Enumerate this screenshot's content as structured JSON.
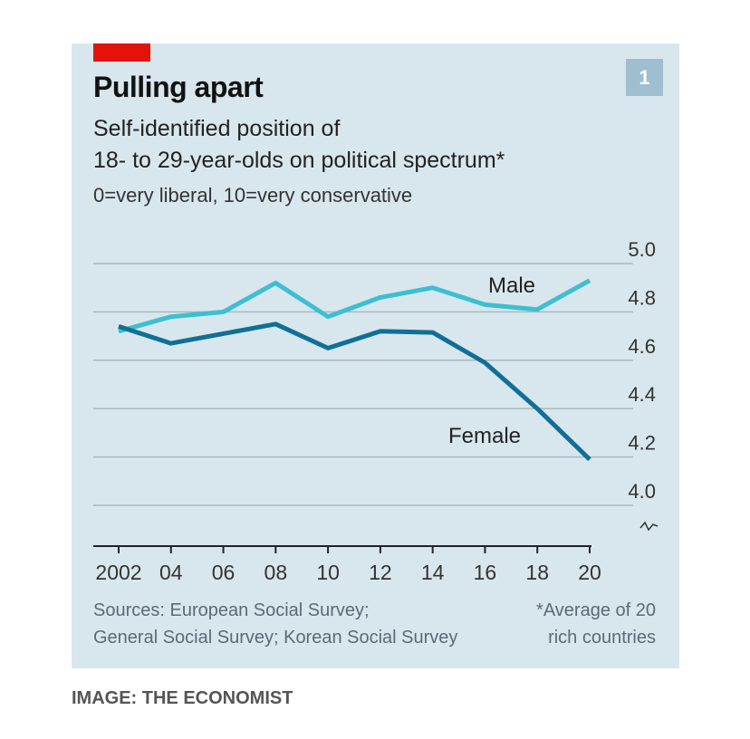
{
  "credit": "IMAGE: THE ECONOMIST",
  "badge": "1",
  "chart_data": {
    "type": "line",
    "title": "Pulling apart",
    "subtitle_lines": [
      "Self-identified position of",
      "18- to 29-year-olds on political spectrum*"
    ],
    "scale_note": "0=very liberal, 10=very conservative",
    "x": [
      2002,
      2004,
      2006,
      2008,
      2010,
      2012,
      2014,
      2016,
      2018,
      2020
    ],
    "x_tick_labels": [
      "2002",
      "04",
      "06",
      "08",
      "10",
      "12",
      "14",
      "16",
      "18",
      "20"
    ],
    "y_tick_labels": [
      "5.0",
      "4.8",
      "4.6",
      "4.4",
      "4.2",
      "4.0"
    ],
    "y_ticks": [
      5.0,
      4.8,
      4.6,
      4.4,
      4.2,
      4.0
    ],
    "ylim": [
      4.0,
      5.0
    ],
    "y_axis_side": "right",
    "grid": true,
    "series": [
      {
        "name": "Male",
        "color": "#3dbfd1",
        "values": [
          4.72,
          4.78,
          4.8,
          4.92,
          4.78,
          4.86,
          4.9,
          4.83,
          4.81,
          4.93
        ]
      },
      {
        "name": "Female",
        "color": "#106f96",
        "values": [
          4.74,
          4.67,
          4.71,
          4.75,
          4.65,
          4.72,
          4.715,
          4.59,
          4.4,
          4.19
        ]
      }
    ],
    "sources": [
      "Sources: European Social Survey;",
      "General Social Survey; Korean Social Survey"
    ],
    "footnote": [
      "*Average of 20",
      "rich countries"
    ]
  }
}
